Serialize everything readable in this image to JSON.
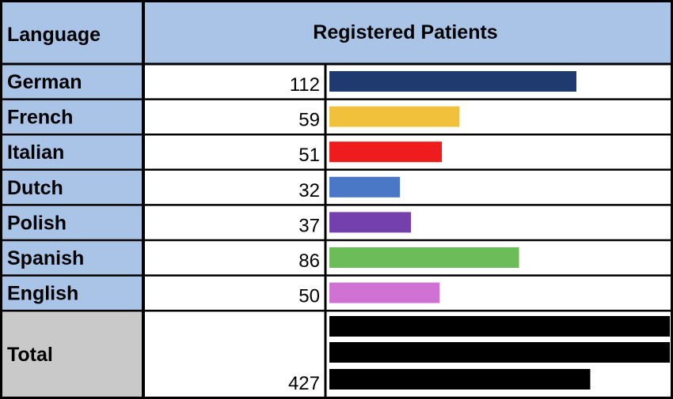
{
  "table": {
    "header_language": "Language",
    "header_patients": "Registered Patients",
    "total_label": "Total",
    "total_value": 427
  },
  "chart_data": {
    "type": "table",
    "columns": [
      "Language",
      "Registered Patients"
    ],
    "categories": [
      "German",
      "French",
      "Italian",
      "Dutch",
      "Polish",
      "Spanish",
      "English"
    ],
    "values": [
      112,
      59,
      51,
      32,
      37,
      86,
      50
    ],
    "colors": [
      "#1f3a6e",
      "#f2c13b",
      "#ee1c1c",
      "#4a78c6",
      "#7440ad",
      "#6cbd5a",
      "#cf72d4"
    ],
    "total": {
      "label": "Total",
      "value": 427,
      "color": "#000000"
    },
    "bar_scale_note": "in-cell data bars, length proportional to value"
  },
  "colors": {
    "header_bg": "#a9c4e6",
    "language_bg": "#a9c4e6",
    "total_bg": "#c9c9c9",
    "border": "#000000"
  }
}
